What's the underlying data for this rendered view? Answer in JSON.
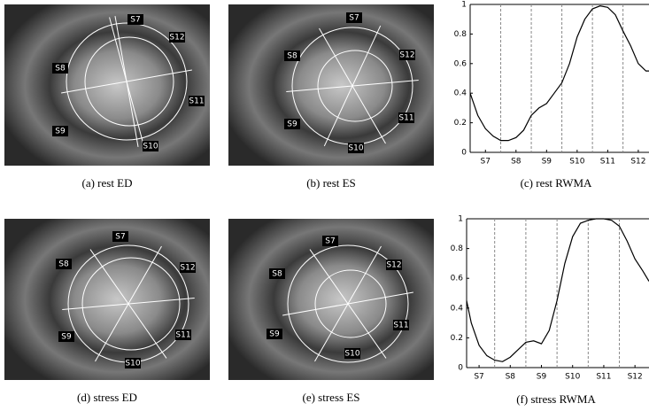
{
  "figures": [
    {
      "caption": "(a) rest ED",
      "labels": [
        "S7",
        "S8",
        "S9",
        "S10",
        "S11",
        "S12"
      ]
    },
    {
      "caption": "(b) rest ES",
      "labels": [
        "S7",
        "S8",
        "S9",
        "S10",
        "S11",
        "S12"
      ]
    },
    {
      "caption": "(d) stress ED",
      "labels": [
        "S7",
        "S8",
        "S9",
        "S10",
        "S11",
        "S12"
      ]
    },
    {
      "caption": "(e) stress ES",
      "labels": [
        "S7",
        "S8",
        "S9",
        "S10",
        "S11",
        "S12"
      ]
    }
  ],
  "chart_data": [
    {
      "type": "line",
      "caption": "(c) rest RWMA",
      "x": [
        0,
        0.25,
        0.5,
        0.75,
        1.0,
        1.25,
        1.5,
        1.75,
        2.0,
        2.25,
        2.5,
        2.75,
        3.0,
        3.25,
        3.5,
        3.75,
        4.0,
        4.25,
        4.5,
        4.75,
        5.0,
        5.25,
        5.5,
        5.75,
        5.85
      ],
      "series": [
        {
          "color": "#000000",
          "values": [
            0.4,
            0.25,
            0.16,
            0.11,
            0.08,
            0.08,
            0.1,
            0.15,
            0.25,
            0.3,
            0.33,
            0.4,
            0.47,
            0.6,
            0.78,
            0.9,
            0.97,
            0.99,
            0.98,
            0.93,
            0.82,
            0.72,
            0.6,
            0.55,
            0.55
          ]
        }
      ],
      "xlim": [
        0,
        5.85
      ],
      "ylim": [
        0,
        1
      ],
      "xticks": [
        {
          "value": 0.5,
          "label": "S7"
        },
        {
          "value": 1.5,
          "label": "S8"
        },
        {
          "value": 2.5,
          "label": "S9"
        },
        {
          "value": 3.5,
          "label": "S10"
        },
        {
          "value": 4.5,
          "label": "S11"
        },
        {
          "value": 5.5,
          "label": "S12"
        }
      ],
      "yticks": [
        0,
        0.2,
        0.4,
        0.6,
        0.8,
        1
      ],
      "segment_boundaries": [
        1,
        2,
        3,
        4,
        5
      ]
    },
    {
      "type": "line",
      "caption": "(f) stress RWMA",
      "x": [
        0.1,
        0.25,
        0.5,
        0.75,
        1.0,
        1.25,
        1.5,
        1.75,
        2.0,
        2.25,
        2.5,
        2.75,
        3.0,
        3.25,
        3.5,
        3.75,
        4.0,
        4.25,
        4.5,
        4.75,
        5.0,
        5.25,
        5.5,
        5.75,
        5.95
      ],
      "series": [
        {
          "color": "#000000",
          "values": [
            0.45,
            0.3,
            0.15,
            0.08,
            0.05,
            0.04,
            0.07,
            0.12,
            0.17,
            0.18,
            0.16,
            0.25,
            0.45,
            0.7,
            0.88,
            0.97,
            0.99,
            1.0,
            1.0,
            0.99,
            0.95,
            0.85,
            0.73,
            0.65,
            0.58
          ]
        }
      ],
      "xlim": [
        0.1,
        5.95
      ],
      "ylim": [
        0,
        1
      ],
      "xticks": [
        {
          "value": 0.5,
          "label": "S7"
        },
        {
          "value": 1.5,
          "label": "S8"
        },
        {
          "value": 2.5,
          "label": "S9"
        },
        {
          "value": 3.5,
          "label": "S10"
        },
        {
          "value": 4.5,
          "label": "S11"
        },
        {
          "value": 5.5,
          "label": "S12"
        }
      ],
      "yticks": [
        0,
        0.2,
        0.4,
        0.6,
        0.8,
        1
      ],
      "segment_boundaries": [
        1,
        2,
        3,
        4,
        5
      ]
    }
  ]
}
